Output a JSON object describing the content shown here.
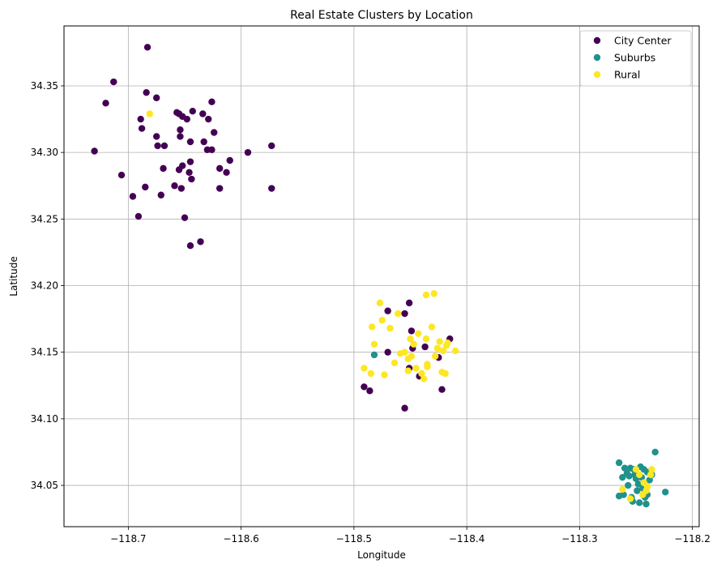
{
  "chart_data": {
    "type": "scatter",
    "title": "Real Estate Clusters by Location",
    "xlabel": "Longitude",
    "ylabel": "Latitude",
    "xlim": [
      -118.757,
      -118.194
    ],
    "ylim": [
      34.019,
      34.395
    ],
    "xticks": [
      -118.7,
      -118.6,
      -118.5,
      -118.4,
      -118.3,
      -118.2
    ],
    "xtick_labels": [
      "−118.7",
      "−118.6",
      "−118.5",
      "−118.4",
      "−118.3",
      "−118.2"
    ],
    "yticks": [
      34.05,
      34.1,
      34.15,
      34.2,
      34.25,
      34.3,
      34.35
    ],
    "ytick_labels": [
      "34.05",
      "34.10",
      "34.15",
      "34.20",
      "34.25",
      "34.30",
      "34.35"
    ],
    "grid": true,
    "legend_position": "top-right",
    "series": [
      {
        "name": "City Center",
        "color": "#440154",
        "points": [
          [
            -118.73,
            34.301
          ],
          [
            -118.72,
            34.337
          ],
          [
            -118.713,
            34.353
          ],
          [
            -118.706,
            34.283
          ],
          [
            -118.696,
            34.267
          ],
          [
            -118.691,
            34.252
          ],
          [
            -118.689,
            34.325
          ],
          [
            -118.688,
            34.318
          ],
          [
            -118.685,
            34.274
          ],
          [
            -118.684,
            34.345
          ],
          [
            -118.683,
            34.379
          ],
          [
            -118.675,
            34.341
          ],
          [
            -118.675,
            34.312
          ],
          [
            -118.674,
            34.305
          ],
          [
            -118.671,
            34.268
          ],
          [
            -118.669,
            34.288
          ],
          [
            -118.668,
            34.305
          ],
          [
            -118.659,
            34.275
          ],
          [
            -118.657,
            34.33
          ],
          [
            -118.655,
            34.329
          ],
          [
            -118.655,
            34.287
          ],
          [
            -118.654,
            34.317
          ],
          [
            -118.654,
            34.312
          ],
          [
            -118.653,
            34.273
          ],
          [
            -118.652,
            34.327
          ],
          [
            -118.652,
            34.29
          ],
          [
            -118.65,
            34.251
          ],
          [
            -118.648,
            34.325
          ],
          [
            -118.646,
            34.285
          ],
          [
            -118.645,
            34.308
          ],
          [
            -118.645,
            34.293
          ],
          [
            -118.645,
            34.23
          ],
          [
            -118.644,
            34.28
          ],
          [
            -118.643,
            34.331
          ],
          [
            -118.636,
            34.233
          ],
          [
            -118.634,
            34.329
          ],
          [
            -118.633,
            34.308
          ],
          [
            -118.63,
            34.302
          ],
          [
            -118.629,
            34.325
          ],
          [
            -118.626,
            34.338
          ],
          [
            -118.626,
            34.302
          ],
          [
            -118.624,
            34.315
          ],
          [
            -118.619,
            34.288
          ],
          [
            -118.619,
            34.273
          ],
          [
            -118.613,
            34.285
          ],
          [
            -118.61,
            34.294
          ],
          [
            -118.594,
            34.3
          ],
          [
            -118.573,
            34.305
          ],
          [
            -118.573,
            34.273
          ],
          [
            -118.491,
            34.124
          ],
          [
            -118.486,
            34.121
          ],
          [
            -118.47,
            34.181
          ],
          [
            -118.47,
            34.15
          ],
          [
            -118.455,
            34.108
          ],
          [
            -118.455,
            34.179
          ],
          [
            -118.451,
            34.187
          ],
          [
            -118.451,
            34.138
          ],
          [
            -118.449,
            34.166
          ],
          [
            -118.448,
            34.153
          ],
          [
            -118.442,
            34.132
          ],
          [
            -118.437,
            34.154
          ],
          [
            -118.425,
            34.146
          ],
          [
            -118.422,
            34.122
          ],
          [
            -118.415,
            34.16
          ]
        ]
      },
      {
        "name": "Suburbs",
        "color": "#21918c",
        "points": [
          [
            -118.482,
            34.148
          ],
          [
            -118.265,
            34.067
          ],
          [
            -118.265,
            34.042
          ],
          [
            -118.262,
            34.056
          ],
          [
            -118.261,
            34.043
          ],
          [
            -118.26,
            34.063
          ],
          [
            -118.258,
            34.059
          ],
          [
            -118.257,
            34.05
          ],
          [
            -118.256,
            34.057
          ],
          [
            -118.255,
            34.063
          ],
          [
            -118.254,
            34.041
          ],
          [
            -118.253,
            34.038
          ],
          [
            -118.252,
            34.062
          ],
          [
            -118.251,
            34.058
          ],
          [
            -118.25,
            34.055
          ],
          [
            -118.249,
            34.046
          ],
          [
            -118.248,
            34.051
          ],
          [
            -118.247,
            34.037
          ],
          [
            -118.246,
            34.064
          ],
          [
            -118.245,
            34.056
          ],
          [
            -118.244,
            34.048
          ],
          [
            -118.243,
            34.062
          ],
          [
            -118.242,
            34.041
          ],
          [
            -118.241,
            34.036
          ],
          [
            -118.24,
            34.043
          ],
          [
            -118.24,
            34.06
          ],
          [
            -118.238,
            34.054
          ],
          [
            -118.236,
            34.058
          ],
          [
            -118.233,
            34.075
          ],
          [
            -118.224,
            34.045
          ]
        ]
      },
      {
        "name": "Rural",
        "color": "#fde725",
        "points": [
          [
            -118.681,
            34.329
          ],
          [
            -118.491,
            34.138
          ],
          [
            -118.485,
            34.134
          ],
          [
            -118.484,
            34.169
          ],
          [
            -118.482,
            34.156
          ],
          [
            -118.477,
            34.187
          ],
          [
            -118.475,
            34.174
          ],
          [
            -118.473,
            34.133
          ],
          [
            -118.468,
            34.168
          ],
          [
            -118.464,
            34.142
          ],
          [
            -118.461,
            34.179
          ],
          [
            -118.459,
            34.149
          ],
          [
            -118.455,
            34.15
          ],
          [
            -118.452,
            34.145
          ],
          [
            -118.452,
            34.136
          ],
          [
            -118.45,
            34.16
          ],
          [
            -118.449,
            34.147
          ],
          [
            -118.447,
            34.156
          ],
          [
            -118.445,
            34.138
          ],
          [
            -118.443,
            34.164
          ],
          [
            -118.44,
            34.134
          ],
          [
            -118.438,
            34.13
          ],
          [
            -118.436,
            34.193
          ],
          [
            -118.436,
            34.16
          ],
          [
            -118.435,
            34.141
          ],
          [
            -118.435,
            34.139
          ],
          [
            -118.431,
            34.169
          ],
          [
            -118.429,
            34.194
          ],
          [
            -118.428,
            34.147
          ],
          [
            -118.426,
            34.153
          ],
          [
            -118.424,
            34.158
          ],
          [
            -118.422,
            34.135
          ],
          [
            -118.421,
            34.151
          ],
          [
            -118.419,
            34.134
          ],
          [
            -118.418,
            34.155
          ],
          [
            -118.417,
            34.157
          ],
          [
            -118.41,
            34.151
          ],
          [
            -118.262,
            34.047
          ],
          [
            -118.255,
            34.04
          ],
          [
            -118.25,
            34.062
          ],
          [
            -118.247,
            34.058
          ],
          [
            -118.244,
            34.043
          ],
          [
            -118.243,
            34.052
          ],
          [
            -118.241,
            34.046
          ],
          [
            -118.24,
            34.049
          ],
          [
            -118.237,
            34.058
          ],
          [
            -118.236,
            34.062
          ]
        ]
      }
    ]
  }
}
